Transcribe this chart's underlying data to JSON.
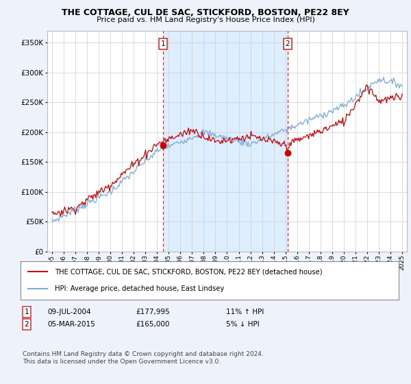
{
  "title": "THE COTTAGE, CUL DE SAC, STICKFORD, BOSTON, PE22 8EY",
  "subtitle": "Price paid vs. HM Land Registry's House Price Index (HPI)",
  "ylim": [
    0,
    370000
  ],
  "yticks": [
    0,
    50000,
    100000,
    150000,
    200000,
    250000,
    300000,
    350000
  ],
  "transaction1": {
    "date": "09-JUL-2004",
    "price": 177995,
    "hpi_diff": "11% ↑ HPI",
    "x": 2004.53
  },
  "transaction2": {
    "date": "05-MAR-2015",
    "price": 165000,
    "hpi_diff": "5% ↓ HPI",
    "x": 2015.18
  },
  "legend_line1": "THE COTTAGE, CUL DE SAC, STICKFORD, BOSTON, PE22 8EY (detached house)",
  "legend_line2": "HPI: Average price, detached house, East Lindsey",
  "footnote": "Contains HM Land Registry data © Crown copyright and database right 2024.\nThis data is licensed under the Open Government Licence v3.0.",
  "line_color_red": "#cc0000",
  "line_color_blue": "#7aaadd",
  "vline_color": "#cc3333",
  "shade_color": "#ddeeff",
  "background_color": "#eef2fb",
  "plot_bg_color": "#ffffff",
  "grid_color": "#cccccc",
  "xlim_left": 1994.6,
  "xlim_right": 2025.4
}
